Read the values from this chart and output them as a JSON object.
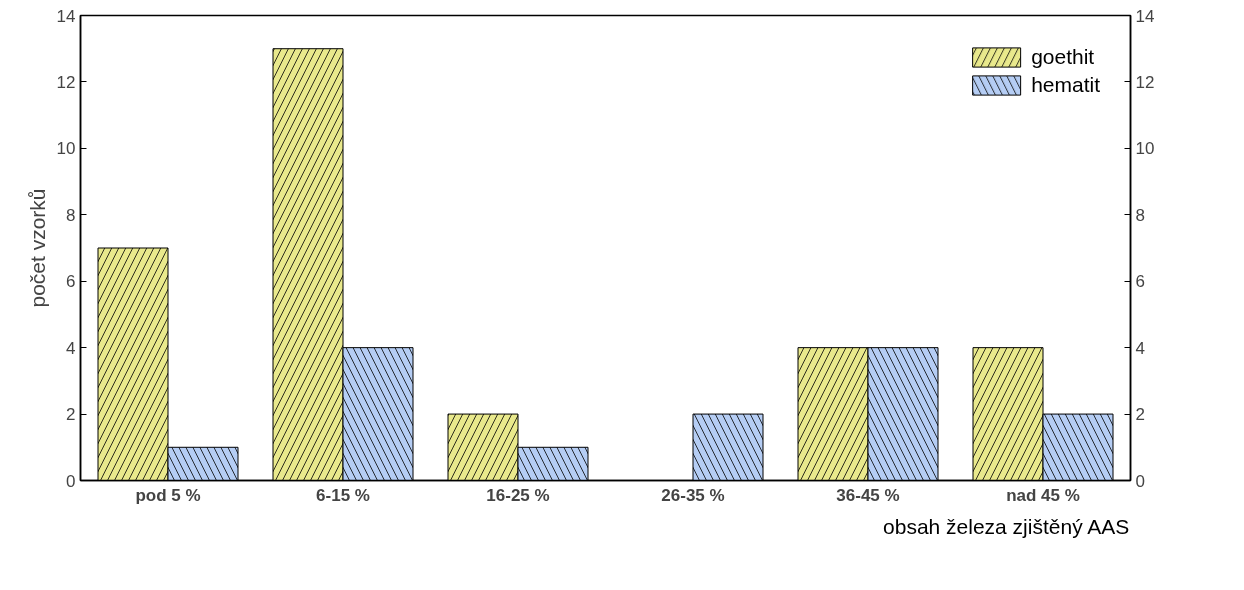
{
  "chart_data": {
    "type": "bar",
    "xlabel": "obsah železa zjištěný AAS",
    "ylabel": "počet vzorků",
    "categories": [
      "pod 5 %",
      "6-15 %",
      "16-25 %",
      "26-35 %",
      "36-45 %",
      "nad 45 %"
    ],
    "series": [
      {
        "name": "goethit",
        "color": "#e9e98c",
        "values": [
          7,
          13,
          2,
          0,
          4,
          4
        ]
      },
      {
        "name": "hematit",
        "color": "#b5cdf4",
        "values": [
          1,
          4,
          1,
          2,
          4,
          2
        ]
      }
    ],
    "ylim": [
      0,
      14
    ],
    "yticks": [
      0,
      2,
      4,
      6,
      8,
      10,
      12,
      14
    ],
    "y2lim": [
      0,
      14
    ],
    "y2ticks": [
      0,
      2,
      4,
      6,
      8,
      10,
      12,
      14
    ],
    "legend": "top right",
    "grid": false
  }
}
